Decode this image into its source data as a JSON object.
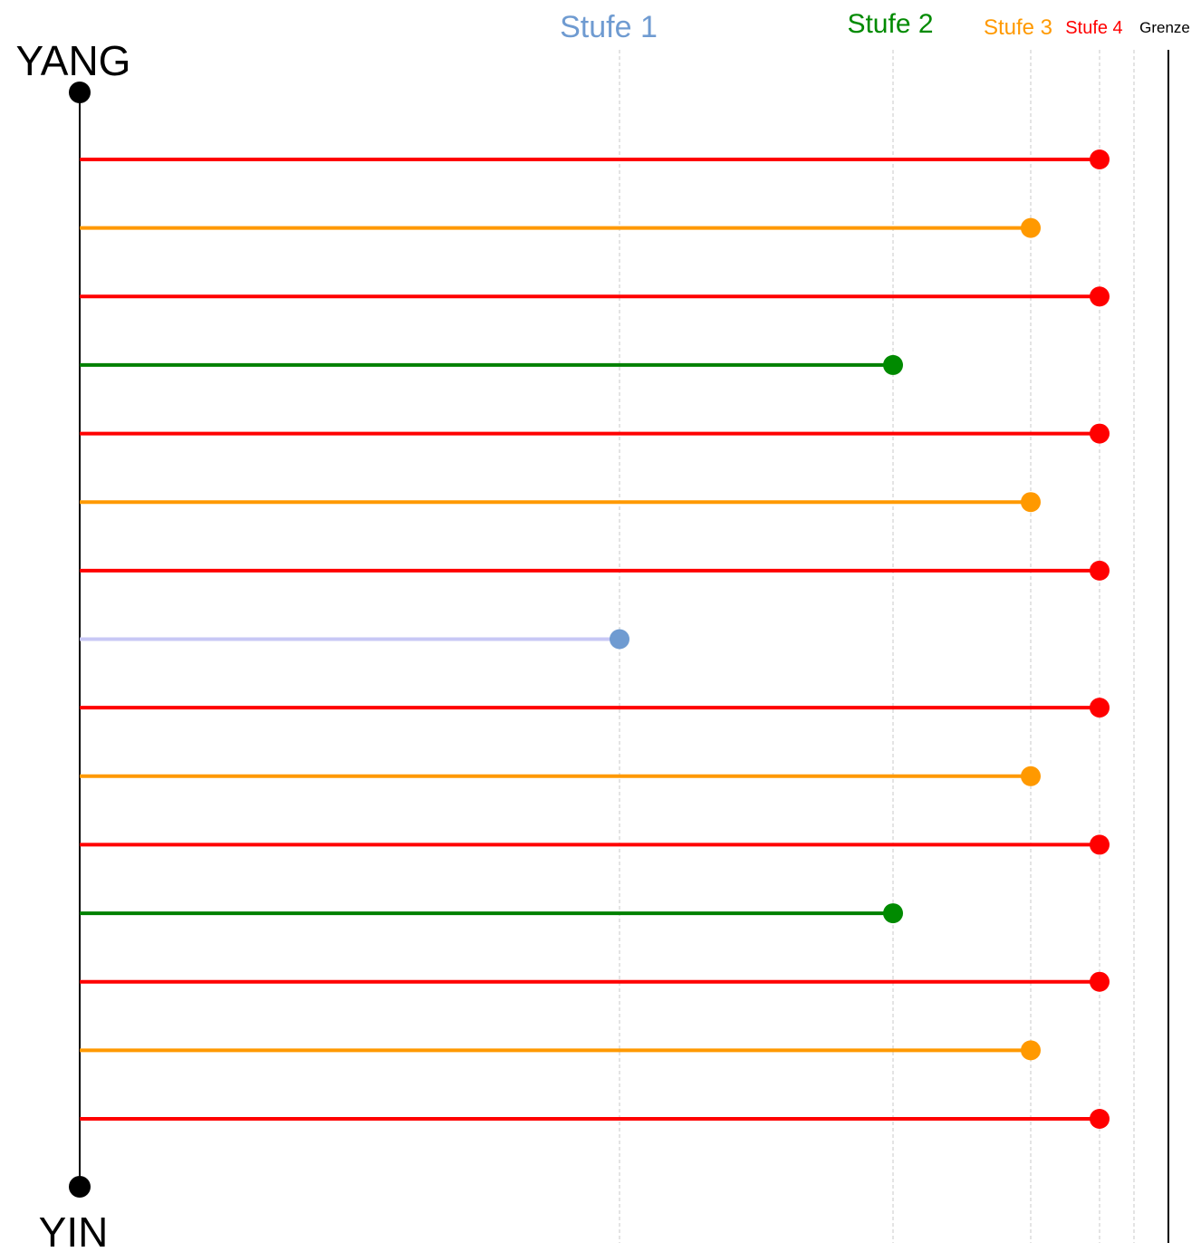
{
  "chart_data": {
    "type": "lollipop",
    "top_label": "YANG",
    "bottom_label": "YIN",
    "levels": [
      {
        "name": "Stufe 1",
        "value": 1,
        "color": "#6f9bd1",
        "line_color": "#c8c8f5"
      },
      {
        "name": "Stufe 2",
        "value": 2,
        "color": "#008a00",
        "line_color": "#008000"
      },
      {
        "name": "Stufe 3",
        "value": 3,
        "color": "#ff9900",
        "line_color": "#ff9900"
      },
      {
        "name": "Stufe 4",
        "value": 4,
        "color": "#ff0000",
        "line_color": "#ff0000"
      },
      {
        "name": "Grenze",
        "value": 4.5,
        "color": "#000000",
        "line_color": "#000000"
      }
    ],
    "series_values": [
      4,
      3,
      4,
      2,
      4,
      3,
      4,
      1,
      4,
      3,
      4,
      2,
      4,
      3,
      4
    ],
    "grid": true
  }
}
